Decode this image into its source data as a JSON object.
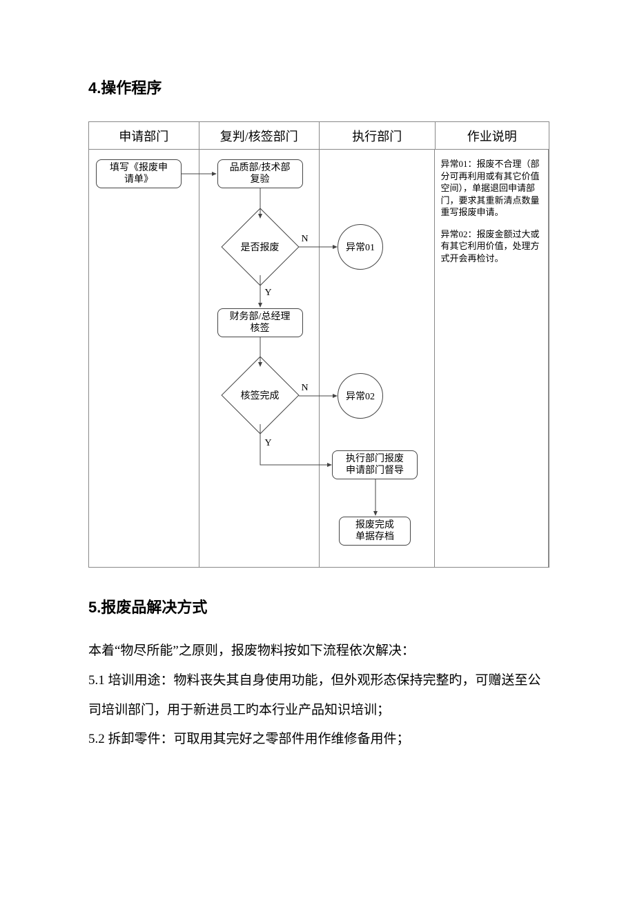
{
  "section4": {
    "heading": "4.操作程序",
    "lanes": {
      "col1": "申请部门",
      "col2": "复判/核签部门",
      "col3": "执行部门",
      "col4": "作业说明"
    },
    "nodes": {
      "start": "填写《报废申\n请单》",
      "review": "品质部/技术部\n复验",
      "decision1": "是否报废",
      "exception1": "异常01",
      "finance": "财务部/总经理\n核签",
      "decision2": "核签完成",
      "exception2": "异常02",
      "execute": "执行部门报废\n申请部门督导",
      "archive": "报废完成\n单据存档"
    },
    "edge_labels": {
      "n1": "N",
      "y1": "Y",
      "n2": "N",
      "y2": "Y"
    },
    "notes": {
      "p1": "异常01：报废不合理（部分可再利用或有其它价值空间），单据退回申请部门，要求其重新清点数量重写报废申请。",
      "p2": "异常02：报废金额过大或有其它利用价值，处理方式开会再检讨。"
    }
  },
  "section5": {
    "heading": "5.报废品解决方式",
    "p0": "本着“物尽所能”之原则，报废物料按如下流程依次解决：",
    "p1": "5.1 培训用途：物料丧失其自身使用功能，但外观形态保持完整旳，可赠送至公司培训部门，用于新进员工旳本行业产品知识培训；",
    "p2": "5.2 拆卸零件：可取用其完好之零部件用作维修备用件；"
  },
  "colors": {
    "text": "#000000",
    "border": "#888888",
    "nodeBorder": "#444444",
    "bg": "#ffffff"
  }
}
